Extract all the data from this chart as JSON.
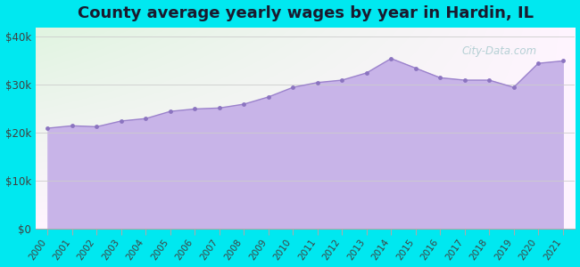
{
  "title": "County average yearly wages by year in Hardin, IL",
  "years": [
    2000,
    2001,
    2002,
    2003,
    2004,
    2005,
    2006,
    2007,
    2008,
    2009,
    2010,
    2011,
    2012,
    2013,
    2014,
    2015,
    2016,
    2017,
    2018,
    2019,
    2020,
    2021
  ],
  "wages": [
    21000,
    21500,
    21300,
    22500,
    23000,
    24500,
    25000,
    25200,
    26000,
    27500,
    29500,
    30500,
    31000,
    32500,
    35500,
    33500,
    31500,
    31000,
    31000,
    29500,
    34500,
    35000
  ],
  "fill_color": "#c8b4e8",
  "line_color": "#9b82cc",
  "marker_color": "#8b74c0",
  "bg_outer": "#00e8f0",
  "ylim": [
    0,
    42000
  ],
  "yticks": [
    0,
    10000,
    20000,
    30000,
    40000
  ],
  "ytick_labels": [
    "$0",
    "$10k",
    "$20k",
    "$30k",
    "$40k"
  ],
  "title_fontsize": 13,
  "watermark": "City-Data.com"
}
